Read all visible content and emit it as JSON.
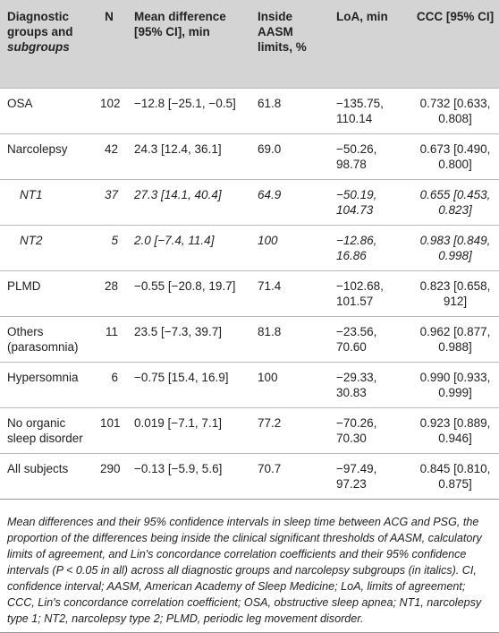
{
  "table": {
    "header": [
      [
        "Diagnostic groups and",
        "subgroups"
      ],
      "N",
      "Mean difference [95% CI], min",
      "Inside AASM limits, %",
      "LoA, min",
      "CCC [95% CI]"
    ],
    "rows": [
      [
        "OSA",
        "102",
        "−12.8 [−25.1, −0.5]",
        "61.8",
        "−135.75, 110.14",
        "0.732 [0.633, 0.808]"
      ],
      [
        "Narcolepsy",
        "42",
        "24.3 [12.4, 36.1]",
        "69.0",
        "−50.26, 98.78",
        "0.673 [0.490, 0.800]"
      ],
      [
        "NT1",
        "37",
        "27.3 [14.1, 40.4]",
        "64.9",
        "−50.19, 104.73",
        "0.655 [0.453, 0.823]"
      ],
      [
        "NT2",
        "5",
        "2.0 [−7.4, 11.4]",
        "100",
        "−12.86, 16.86",
        "0.983 [0.849, 0.998]"
      ],
      [
        "PLMD",
        "28",
        "−0.55 [−20.8, 19.7]",
        "71.4",
        "−102.68, 101.57",
        "0.823 [0.658, 912]"
      ],
      [
        "Others (parasomnia)",
        "11",
        "23.5 [−7.3, 39.7]",
        "81.8",
        "−23.56, 70.60",
        "0.962 [0.877, 0.988]"
      ],
      [
        "Hypersomnia",
        "6",
        "−0.75 [15.4, 16.9]",
        "100",
        "−29.33, 30.83",
        "0.990 [0.933, 0.999]"
      ],
      [
        "No organic sleep disorder",
        "101",
        "0.019 [−7.1, 7.1]",
        "77.2",
        "−70.26, 70.30",
        "0.923 [0.889, 0.946]"
      ],
      [
        "All subjects",
        "290",
        "−0.13 [−5.9, 5.6]",
        "70.7",
        "−97.49, 97.23",
        "0.845 [0.810, 0.875]"
      ]
    ],
    "caption": "Mean differences and their 95% confidence intervals in sleep time between ACG and PSG, the proportion of the differences being inside the clinical significant thresholds of AASM, calculatory limits of agreement, and Lin's concordance correlation coefficients and their 95% confidence intervals (P < 0.05 in all) across all diagnostic groups and narcolepsy subgroups (in italics). CI, confidence interval; AASM, American Academy of Sleep Medicine; LoA, limits of agreement; CCC, Lin's concordance correlation coefficient; OSA, obstructive sleep apnea; NT1, narcolepsy type 1; NT2, narcolepsy type 2; PLMD, periodic leg movement disorder."
  }
}
